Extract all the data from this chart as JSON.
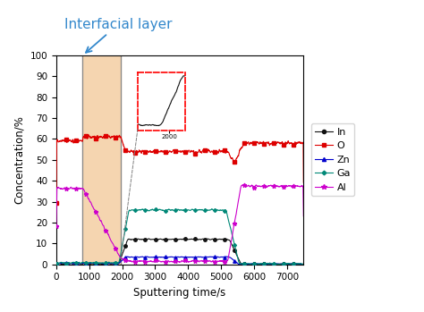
{
  "title": "Interfacial layer",
  "xlabel": "Sputtering time/s",
  "ylabel": "Concentration/%",
  "xlim": [
    0,
    7500
  ],
  "ylim": [
    0,
    100
  ],
  "xticks": [
    0,
    1000,
    2000,
    3000,
    4000,
    5000,
    6000,
    7000
  ],
  "yticks": [
    0,
    10,
    20,
    30,
    40,
    50,
    60,
    70,
    80,
    90,
    100
  ],
  "shaded_region": [
    800,
    1950
  ],
  "shaded_color": "#f5d5b0",
  "vline_x1": 800,
  "vline_x2": 1950,
  "vline_color": "#888888",
  "colors": {
    "In": "#111111",
    "O": "#dd0000",
    "Zn": "#0000cc",
    "Ga": "#008877",
    "Al": "#cc00cc"
  },
  "title_color": "#3388cc",
  "title_fontsize": 11
}
